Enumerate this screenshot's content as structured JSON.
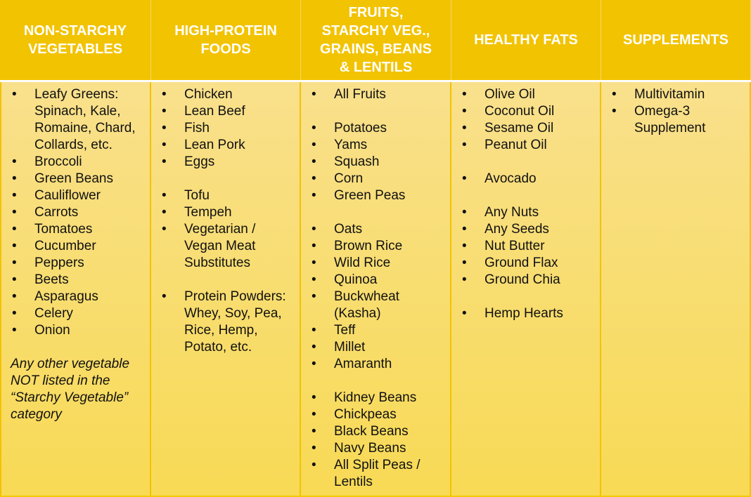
{
  "colors": {
    "header": "#F2C300",
    "body_top": "#F9E08C",
    "body_bottom": "#F8DA55",
    "header_text": "#FFFFFF"
  },
  "columns": [
    {
      "header": "NON-STARCHY\nVEGETABLES",
      "items": [
        "Leafy Greens:\nSpinach, Kale,\nRomaine, Chard,\nCollards, etc.",
        "Broccoli",
        "Green Beans",
        "Cauliflower",
        "Carrots",
        "Tomatoes",
        "Cucumber",
        "Peppers",
        "Beets",
        "Asparagus",
        "Celery",
        "Onion"
      ],
      "note": "Any other vegetable\nNOT listed in the\n“Starchy Vegetable”\ncategory"
    },
    {
      "header": "HIGH-PROTEIN\nFOODS",
      "items": [
        "Chicken",
        "Lean Beef",
        "Fish",
        "Lean Pork",
        "Eggs",
        "",
        "Tofu",
        "Tempeh",
        "Vegetarian /\nVegan Meat\nSubstitutes",
        "",
        "Protein Powders:\nWhey, Soy, Pea,\nRice, Hemp,\nPotato, etc."
      ]
    },
    {
      "header": "FRUITS,\nSTARCHY VEG.,\nGRAINS, BEANS\n& LENTILS",
      "items": [
        "All Fruits",
        "",
        "Potatoes",
        "Yams",
        "Squash",
        "Corn",
        "Green Peas",
        "",
        "Oats",
        "Brown Rice",
        "Wild Rice",
        "Quinoa",
        "Buckwheat\n(Kasha)",
        "Teff",
        "Millet",
        "Amaranth",
        "",
        "Kidney Beans",
        "Chickpeas",
        "Black Beans",
        "Navy Beans",
        "All Split Peas /\nLentils"
      ]
    },
    {
      "header": "HEALTHY FATS",
      "items": [
        "Olive Oil",
        "Coconut Oil",
        "Sesame Oil",
        "Peanut Oil",
        "",
        "Avocado",
        "",
        "Any Nuts",
        "Any Seeds",
        "Nut Butter",
        "Ground Flax",
        "Ground Chia",
        "",
        "Hemp Hearts"
      ]
    },
    {
      "header": "SUPPLEMENTS",
      "items": [
        "Multivitamin",
        "Omega-3\nSupplement"
      ]
    }
  ]
}
